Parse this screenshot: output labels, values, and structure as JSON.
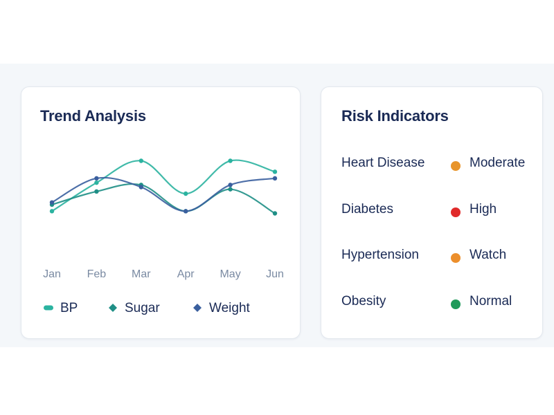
{
  "trend": {
    "title": "Trend Analysis"
  },
  "chart_data": {
    "type": "line",
    "categories": [
      "Jan",
      "Feb",
      "Mar",
      "Apr",
      "May",
      "Jun"
    ],
    "series": [
      {
        "name": "BP",
        "color": "#2bb3a0",
        "values": [
          62,
          75,
          85,
          70,
          85,
          80
        ]
      },
      {
        "name": "Sugar",
        "color": "#1f8f86",
        "values": [
          65,
          71,
          74,
          62,
          72,
          61
        ]
      },
      {
        "name": "Weight",
        "color": "#3a5f9e",
        "values": [
          66,
          77,
          73,
          62,
          74,
          77
        ]
      }
    ],
    "ylim": [
      40,
      100
    ],
    "grid": false,
    "legend": "bottom"
  },
  "risk": {
    "title": "Risk Indicators",
    "items": [
      {
        "name": "Heart Disease",
        "level": "Moderate",
        "color": "#e8942a"
      },
      {
        "name": "Diabetes",
        "level": "High",
        "color": "#e02a2a"
      },
      {
        "name": "Hypertension",
        "level": "Watch",
        "color": "#ec8f2c"
      },
      {
        "name": "Obesity",
        "level": "Normal",
        "color": "#1f9a5a"
      }
    ]
  }
}
